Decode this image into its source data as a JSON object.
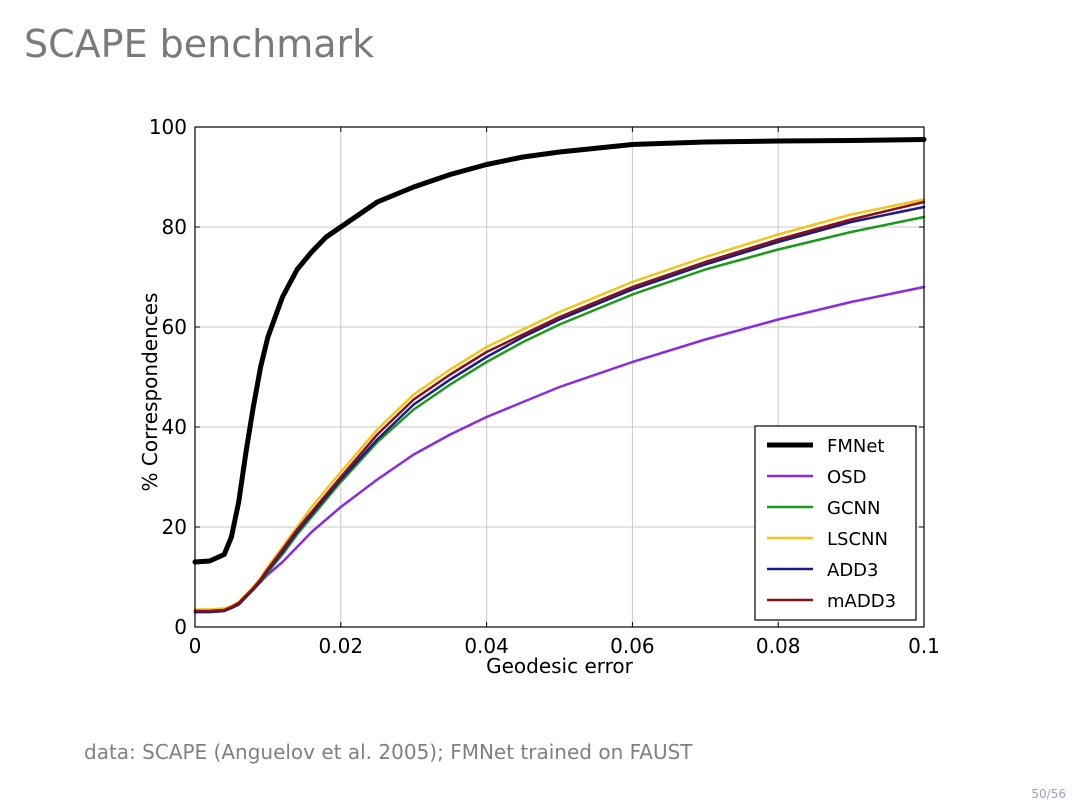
{
  "slide": {
    "title": "SCAPE benchmark",
    "caption": "data: SCAPE (Anguelov et al. 2005); FMNet trained on FAUST",
    "page_number": "50/56"
  },
  "chart_data": {
    "type": "line",
    "title": "",
    "xlabel": "Geodesic error",
    "ylabel": "% Correspondences",
    "xlim": [
      0,
      0.1
    ],
    "ylim": [
      0,
      100
    ],
    "xticks": [
      0,
      0.02,
      0.04,
      0.06,
      0.08,
      0.1
    ],
    "xtick_labels": [
      "0",
      "0.02",
      "0.04",
      "0.06",
      "0.08",
      "0.1"
    ],
    "yticks": [
      0,
      20,
      40,
      60,
      80,
      100
    ],
    "ytick_labels": [
      "0",
      "20",
      "40",
      "60",
      "80",
      "100"
    ],
    "grid": true,
    "legend_position": "bottom-right",
    "x": [
      0,
      0.002,
      0.004,
      0.005,
      0.006,
      0.007,
      0.008,
      0.009,
      0.01,
      0.012,
      0.014,
      0.016,
      0.018,
      0.02,
      0.025,
      0.03,
      0.035,
      0.04,
      0.045,
      0.05,
      0.06,
      0.07,
      0.08,
      0.09,
      0.1
    ],
    "series": [
      {
        "name": "FMNet",
        "color": "#000000",
        "width": 5,
        "values": [
          13,
          13.2,
          14.5,
          18,
          25,
          35,
          44,
          52,
          58,
          66,
          71.5,
          75,
          78,
          80,
          85,
          88,
          90.5,
          92.5,
          94,
          95,
          96.5,
          97,
          97.2,
          97.3,
          97.5
        ]
      },
      {
        "name": "OSD",
        "color": "#8a2be2",
        "width": 2.5,
        "values": [
          3,
          3,
          3.2,
          3.8,
          4.5,
          6,
          7.5,
          9,
          10.5,
          13,
          16,
          19,
          21.5,
          24,
          29.5,
          34.5,
          38.5,
          42,
          45,
          48,
          53,
          57.5,
          61.5,
          65,
          68
        ]
      },
      {
        "name": "GCNN",
        "color": "#1a9a1a",
        "width": 2.5,
        "values": [
          3,
          3,
          3.2,
          3.8,
          4.5,
          6,
          7.5,
          9,
          11,
          14.5,
          18.5,
          22,
          25.5,
          29,
          37,
          43.5,
          48.5,
          53,
          57,
          60.5,
          66.5,
          71.5,
          75.5,
          79,
          82
        ]
      },
      {
        "name": "LSCNN",
        "color": "#f0c419",
        "width": 2.5,
        "values": [
          3.5,
          3.5,
          3.7,
          4.2,
          5,
          6.5,
          8,
          9.8,
          12,
          16,
          20,
          24,
          27.5,
          31,
          39.5,
          46.5,
          51.5,
          56,
          59.5,
          63,
          69,
          74,
          78.5,
          82.5,
          85.5
        ]
      },
      {
        "name": "ADD3",
        "color": "#1a1a8c",
        "width": 2.5,
        "values": [
          3,
          3,
          3.2,
          3.8,
          4.5,
          6,
          7.5,
          9.2,
          11.3,
          15,
          19,
          22.5,
          26,
          29.5,
          37.5,
          44.5,
          49.5,
          54,
          58,
          61.5,
          67.5,
          72.5,
          77,
          81,
          84
        ]
      },
      {
        "name": "mADD3",
        "color": "#8b1010",
        "width": 2.5,
        "values": [
          3.2,
          3.2,
          3.4,
          4,
          4.8,
          6.3,
          7.8,
          9.5,
          11.6,
          15.5,
          19.5,
          23,
          26.5,
          30,
          38.5,
          45.5,
          50.5,
          55,
          58.5,
          62,
          68,
          73,
          77.5,
          81.5,
          85
        ]
      }
    ]
  }
}
